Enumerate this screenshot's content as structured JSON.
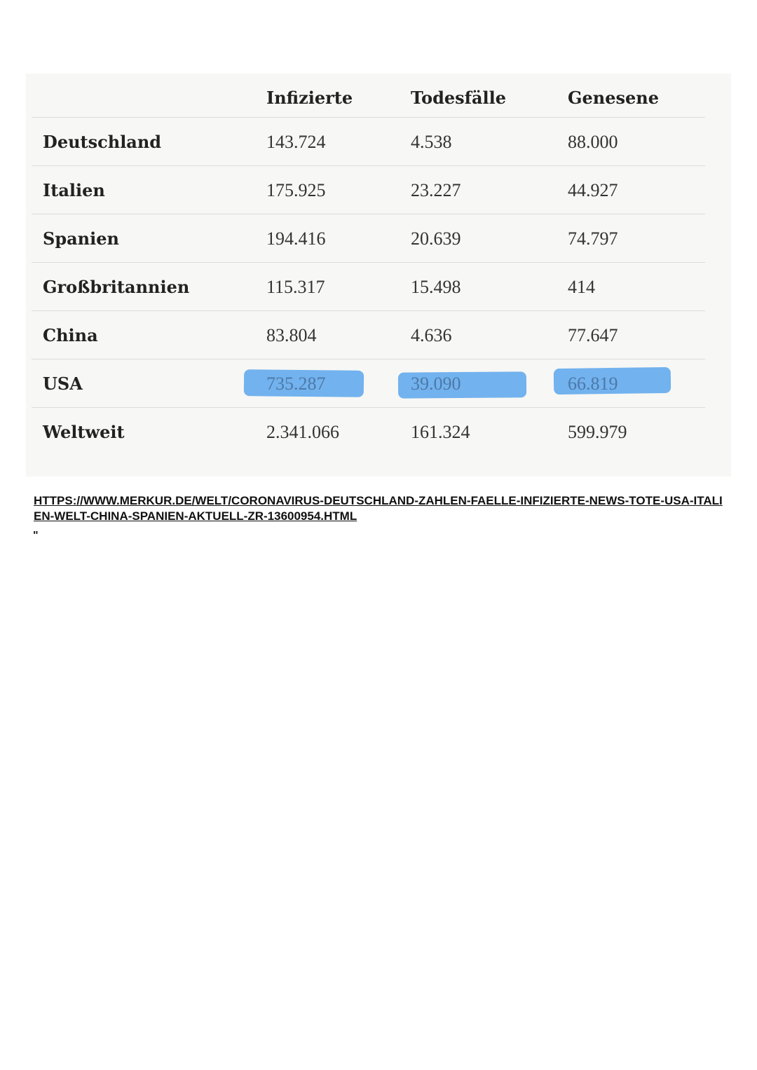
{
  "table": {
    "headers": [
      "",
      "Infizierte",
      "Todesfälle",
      "Genesene"
    ],
    "rows": [
      {
        "country": "Deutschland",
        "infizierte": "143.724",
        "todesfaelle": "4.538",
        "genesene": "88.000"
      },
      {
        "country": "Italien",
        "infizierte": "175.925",
        "todesfaelle": "23.227",
        "genesene": "44.927"
      },
      {
        "country": "Spanien",
        "infizierte": "194.416",
        "todesfaelle": "20.639",
        "genesene": "74.797"
      },
      {
        "country": "Großbritannien",
        "infizierte": "115.317",
        "todesfaelle": "15.498",
        "genesene": "414"
      },
      {
        "country": "China",
        "infizierte": "83.804",
        "todesfaelle": "4.636",
        "genesene": "77.647"
      },
      {
        "country": "USA",
        "infizierte": "735.287",
        "todesfaelle": "39.090",
        "genesene": "66.819"
      },
      {
        "country": "Weltweit",
        "infizierte": "2.341.066",
        "todesfaelle": "161.324",
        "genesene": "599.979"
      }
    ]
  },
  "highlight": {
    "row": "USA",
    "color": "#5aa6ec"
  },
  "source": {
    "url_text": "HTTPS://WWW.MERKUR.DE/WELT/CORONAVIRUS-DEUTSCHLAND-ZAHLEN-FAELLE-INFIZIERTE-NEWS-TOTE-USA-ITALIEN-WELT-CHINA-SPANIEN-AKTUELL-ZR-13600954.HTML",
    "quote_mark": "\""
  }
}
